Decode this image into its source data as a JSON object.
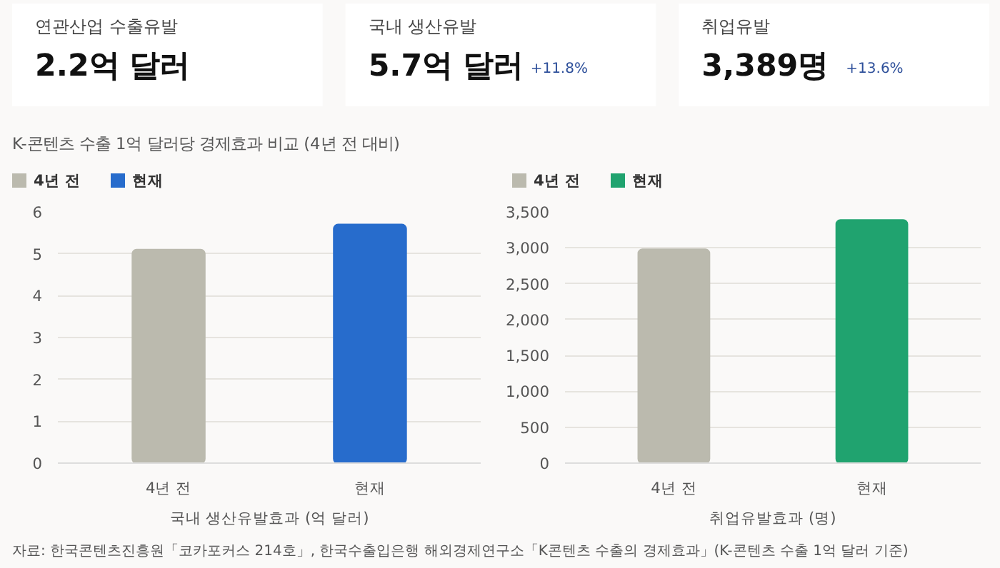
{
  "chart_data": [
    {
      "type": "other",
      "categories": [
        "연관산업 수출유발",
        "국내 생산유발",
        "취업유발"
      ],
      "value_labels": [
        "2.2억 달러",
        "5.7억 달러",
        "3,389명"
      ],
      "annotations": [
        null,
        "+11.8%",
        "+13.6%"
      ]
    },
    {
      "type": "bar",
      "title": "K-콘텐츠 수출 1억 달러당 경제효과 비교 (4년 전 대비)",
      "xlabel": "국내 생산유발효과 (억 달러)",
      "categories": [
        "4년 전",
        "현재"
      ],
      "series": [
        {
          "name": "4년 전",
          "color": "#bbbaae",
          "values": [
            5.1,
            null
          ]
        },
        {
          "name": "현재",
          "color": "#276ccc",
          "values": [
            null,
            5.7
          ]
        }
      ],
      "ylim": [
        0,
        6
      ],
      "yticks": [
        0,
        1,
        2,
        3,
        4,
        5,
        6
      ],
      "grid": "y",
      "legend": "top left"
    },
    {
      "type": "bar",
      "xlabel": "취업유발효과 (명)",
      "categories": [
        "4년 전",
        "현재"
      ],
      "series": [
        {
          "name": "4년 전",
          "color": "#bbbaae",
          "values": [
            2980,
            null
          ]
        },
        {
          "name": "현재",
          "color": "#20a36f",
          "values": [
            null,
            3389
          ]
        }
      ],
      "ylim": [
        0,
        3500
      ],
      "yticks": [
        {
          "value": 0,
          "label": "0"
        },
        {
          "value": 500,
          "label": "500"
        },
        {
          "value": 1000,
          "label": "1,000"
        },
        {
          "value": 1500,
          "label": "1,500"
        },
        {
          "value": 2000,
          "label": "2,000"
        },
        {
          "value": 2500,
          "label": "2,500"
        },
        {
          "value": 3000,
          "label": "3,000"
        },
        {
          "value": 3500,
          "label": "3,500"
        }
      ],
      "grid": "y",
      "legend": "top left",
      "annotations": [
        "자료: 한국콘텐츠진흥원「코카포커스 214호」, 한국수출입은행 해외경제연구소「K콘텐츠 수출의 경제효과」(K-콘텐츠 수출 1억 달러 기준)"
      ]
    }
  ]
}
